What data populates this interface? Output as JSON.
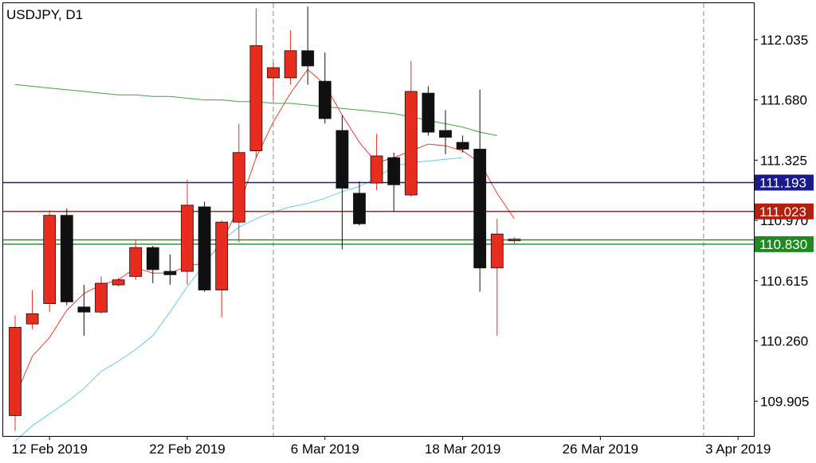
{
  "chart_data": {
    "type": "candlestick",
    "title": "USDJPY, D1",
    "ylim": [
      109.7,
      112.25
    ],
    "y_ticks": [
      "112.035",
      "111.680",
      "111.325",
      "110.970",
      "110.615",
      "110.260",
      "109.905"
    ],
    "x_ticks": [
      {
        "label": "12 Feb 2019",
        "bar": 2
      },
      {
        "label": "22 Feb 2019",
        "bar": 10
      },
      {
        "label": "6 Mar 2019",
        "bar": 18
      },
      {
        "label": "18 Mar 2019",
        "bar": 26
      },
      {
        "label": "26 Mar 2019",
        "bar": 34
      },
      {
        "label": "3 Apr 2019",
        "bar": 42
      }
    ],
    "period_separators": [
      15,
      40
    ],
    "candles": [
      {
        "o": 109.82,
        "h": 110.41,
        "l": 109.73,
        "c": 110.34
      },
      {
        "o": 110.36,
        "h": 110.56,
        "l": 110.33,
        "c": 110.42
      },
      {
        "o": 110.48,
        "h": 111.03,
        "l": 110.43,
        "c": 111.0
      },
      {
        "o": 111.0,
        "h": 111.04,
        "l": 110.47,
        "c": 110.49
      },
      {
        "o": 110.46,
        "h": 110.59,
        "l": 110.29,
        "c": 110.43
      },
      {
        "o": 110.43,
        "h": 110.64,
        "l": 110.42,
        "c": 110.6
      },
      {
        "o": 110.59,
        "h": 110.63,
        "l": 110.58,
        "c": 110.62
      },
      {
        "o": 110.64,
        "h": 110.86,
        "l": 110.62,
        "c": 110.81
      },
      {
        "o": 110.81,
        "h": 110.82,
        "l": 110.6,
        "c": 110.68
      },
      {
        "o": 110.67,
        "h": 110.77,
        "l": 110.59,
        "c": 110.65
      },
      {
        "o": 110.67,
        "h": 111.21,
        "l": 110.59,
        "c": 111.06
      },
      {
        "o": 111.05,
        "h": 111.08,
        "l": 110.55,
        "c": 110.56
      },
      {
        "o": 110.56,
        "h": 110.97,
        "l": 110.4,
        "c": 110.96
      },
      {
        "o": 110.96,
        "h": 111.54,
        "l": 110.84,
        "c": 111.37
      },
      {
        "o": 111.38,
        "h": 112.22,
        "l": 111.34,
        "c": 112.0
      },
      {
        "o": 111.81,
        "h": 111.9,
        "l": 111.68,
        "c": 111.87
      },
      {
        "o": 111.81,
        "h": 112.09,
        "l": 111.77,
        "c": 111.97
      },
      {
        "o": 111.97,
        "h": 112.23,
        "l": 111.77,
        "c": 111.88
      },
      {
        "o": 111.79,
        "h": 111.96,
        "l": 111.54,
        "c": 111.57
      },
      {
        "o": 111.5,
        "h": 111.59,
        "l": 110.8,
        "c": 111.16
      },
      {
        "o": 111.13,
        "h": 111.2,
        "l": 110.94,
        "c": 110.95
      },
      {
        "o": 111.19,
        "h": 111.48,
        "l": 111.15,
        "c": 111.35
      },
      {
        "o": 111.34,
        "h": 111.37,
        "l": 111.02,
        "c": 111.18
      },
      {
        "o": 111.12,
        "h": 111.91,
        "l": 111.11,
        "c": 111.73
      },
      {
        "o": 111.72,
        "h": 111.76,
        "l": 111.47,
        "c": 111.49
      },
      {
        "o": 111.5,
        "h": 111.62,
        "l": 111.36,
        "c": 111.46
      },
      {
        "o": 111.43,
        "h": 111.47,
        "l": 111.37,
        "c": 111.39
      },
      {
        "o": 111.39,
        "h": 111.74,
        "l": 110.55,
        "c": 110.69
      },
      {
        "o": 110.69,
        "h": 110.98,
        "l": 110.29,
        "c": 110.89
      },
      {
        "o": 110.85,
        "h": 110.87,
        "l": 110.83,
        "c": 110.86
      }
    ],
    "series": [
      {
        "type": "sma-fast",
        "color": "#ef3b2c",
        "values": [
          109.93,
          110.17,
          110.28,
          110.44,
          110.54,
          110.59,
          110.62,
          110.69,
          110.66,
          110.66,
          110.7,
          110.72,
          110.84,
          111.05,
          111.34,
          111.55,
          111.72,
          111.86,
          111.77,
          111.59,
          111.43,
          111.31,
          111.34,
          111.38,
          111.42,
          111.41,
          111.38,
          111.31,
          111.13,
          110.98
        ]
      },
      {
        "type": "sma-medium",
        "color": "#66cbe4",
        "values": [
          109.67,
          109.76,
          109.83,
          109.9,
          109.98,
          110.08,
          110.14,
          110.21,
          110.29,
          110.43,
          110.58,
          110.71,
          110.85,
          110.93,
          110.98,
          111.02,
          111.05,
          111.07,
          111.1,
          111.14,
          111.17,
          111.22,
          111.29,
          111.31,
          111.32,
          111.33,
          111.34
        ]
      },
      {
        "type": "sma-slow",
        "color": "#3ea53e",
        "values": [
          111.77,
          111.76,
          111.75,
          111.74,
          111.73,
          111.72,
          111.71,
          111.71,
          111.7,
          111.7,
          111.69,
          111.68,
          111.68,
          111.67,
          111.67,
          111.66,
          111.66,
          111.65,
          111.64,
          111.63,
          111.62,
          111.61,
          111.6,
          111.58,
          111.56,
          111.54,
          111.52,
          111.49,
          111.47
        ]
      }
    ],
    "horizontal_lines": [
      {
        "value": 111.193,
        "label": "111.193",
        "color": "#1a1a8c"
      },
      {
        "value": 111.023,
        "label": "111.023",
        "color": "#b22010"
      },
      {
        "value": 110.83,
        "label": "110.830",
        "color": "#1f8a20"
      },
      {
        "value": 110.855,
        "label": "",
        "color": "#1f8a20"
      }
    ],
    "colors": {
      "bull": "#e82c1e",
      "bear": "#111111",
      "grid": "#9e9e9e",
      "axis": "#000000"
    }
  }
}
